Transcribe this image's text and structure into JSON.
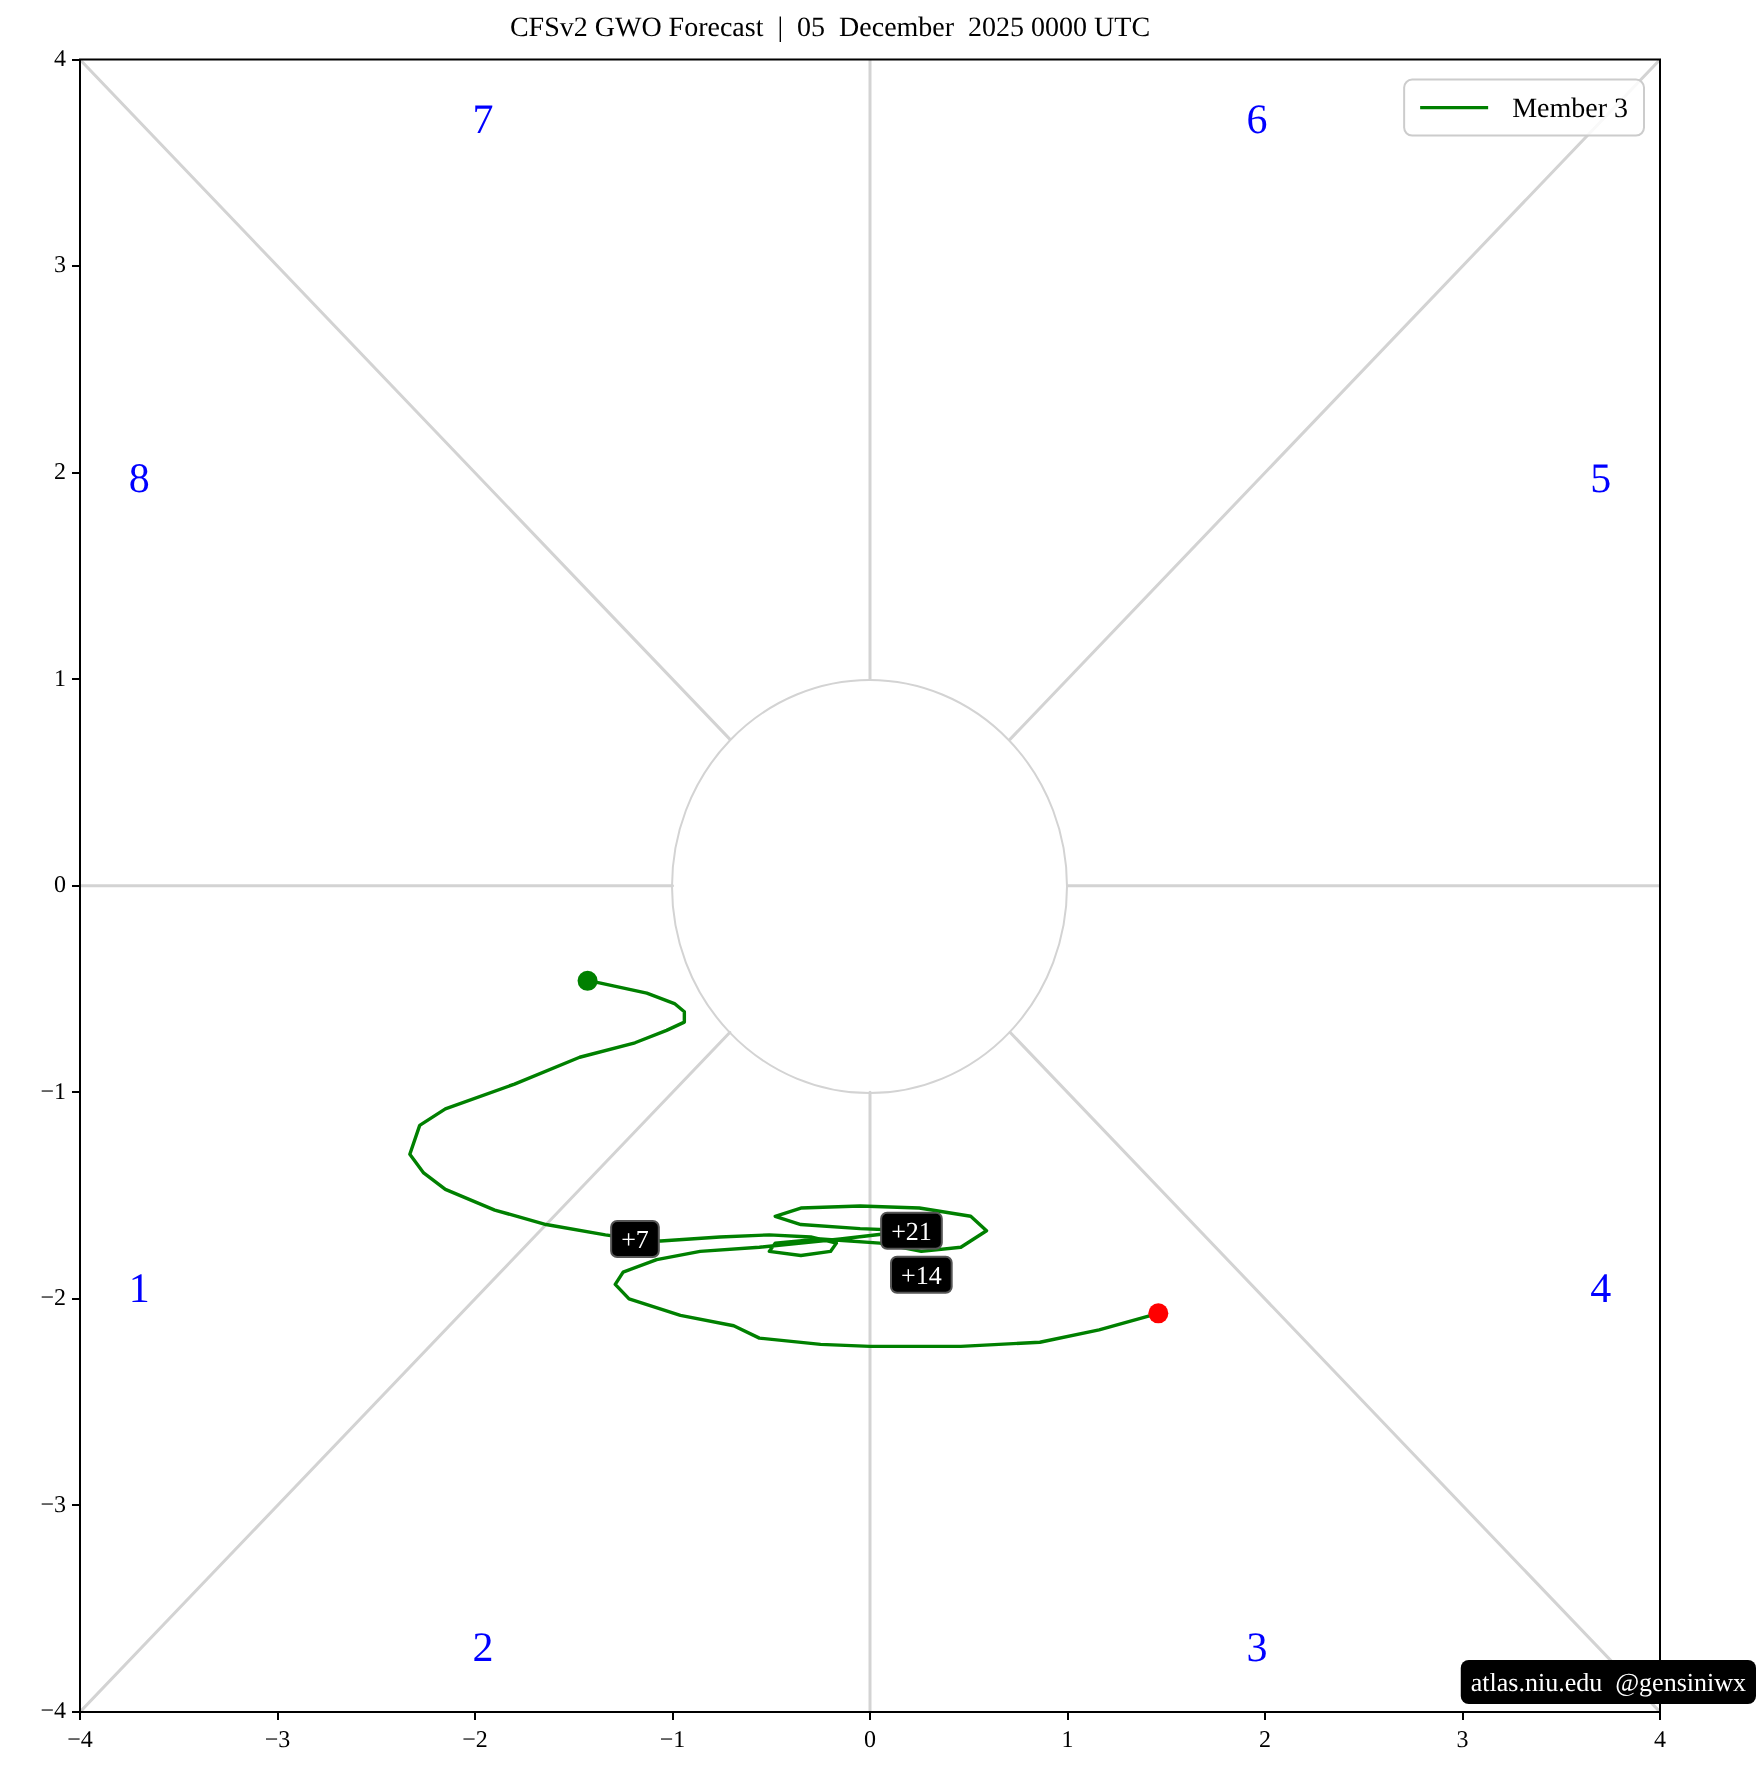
{
  "chart_data": {
    "type": "line",
    "title": "CFSv2 GWO Forecast  |  05  December  2025 0000 UTC",
    "xlim": [
      -4,
      4
    ],
    "ylim": [
      -4,
      4
    ],
    "xticks": [
      {
        "value": -4,
        "label": "−4"
      },
      {
        "value": -3,
        "label": "−3"
      },
      {
        "value": -2,
        "label": "−2"
      },
      {
        "value": -1,
        "label": "−1"
      },
      0,
      1,
      2,
      3,
      4
    ],
    "yticks": [
      {
        "value": -4,
        "label": "−4"
      },
      {
        "value": -3,
        "label": "−3"
      },
      {
        "value": -2,
        "label": "−2"
      },
      {
        "value": -1,
        "label": "−1"
      },
      0,
      1,
      2,
      3,
      4
    ],
    "legend": "top right",
    "series": [
      {
        "color": "#d3d3d3",
        "x": [
          -4,
          -1
        ],
        "values": [
          0,
          0
        ]
      },
      {
        "color": "#d3d3d3",
        "x": [
          1,
          4
        ],
        "values": [
          0,
          0
        ]
      },
      {
        "color": "#d3d3d3",
        "x": [
          0,
          0
        ],
        "values": [
          1,
          4
        ]
      },
      {
        "color": "#d3d3d3",
        "x": [
          0,
          0
        ],
        "values": [
          -1,
          -4
        ]
      },
      {
        "color": "#d3d3d3",
        "x": [
          -4,
          -0.71
        ],
        "values": [
          4,
          0.71
        ]
      },
      {
        "color": "#d3d3d3",
        "x": [
          0.71,
          4
        ],
        "values": [
          0.71,
          4
        ]
      },
      {
        "color": "#d3d3d3",
        "x": [
          -4,
          -0.71
        ],
        "values": [
          -4,
          -0.71
        ]
      },
      {
        "color": "#d3d3d3",
        "x": [
          0.71,
          4
        ],
        "values": [
          -0.71,
          -4
        ]
      },
      {
        "name": "Member 3",
        "color": "#008000",
        "x": [
          -1.43,
          -1.37,
          -1.13,
          -0.99,
          -0.94,
          -0.94,
          -1.03,
          -1.19,
          -1.47,
          -1.8,
          -2.15,
          -2.28,
          -2.33,
          -2.26,
          -2.15,
          -1.9,
          -1.64,
          -1.34,
          -1.19,
          -1.06,
          -0.76,
          -0.51,
          -0.3,
          -0.17,
          -0.2,
          -0.35,
          -0.51,
          -0.48,
          -0.25,
          0.05,
          0.26,
          0.46,
          0.59,
          0.51,
          0.25,
          -0.05,
          -0.35,
          -0.48,
          -0.35,
          -0.05,
          0.21,
          -0.15,
          -0.56,
          -0.86,
          -1.08,
          -1.25,
          -1.29,
          -1.22,
          -0.96,
          -0.69,
          -0.56,
          -0.25,
          0,
          0.46,
          0.86,
          1.16,
          1.46
        ],
        "values": [
          -0.46,
          -0.47,
          -0.52,
          -0.57,
          -0.61,
          -0.66,
          -0.7,
          -0.76,
          -0.83,
          -0.96,
          -1.08,
          -1.16,
          -1.3,
          -1.39,
          -1.47,
          -1.57,
          -1.64,
          -1.69,
          -1.71,
          -1.72,
          -1.7,
          -1.69,
          -1.7,
          -1.73,
          -1.77,
          -1.79,
          -1.77,
          -1.73,
          -1.71,
          -1.73,
          -1.77,
          -1.75,
          -1.67,
          -1.6,
          -1.56,
          -1.55,
          -1.56,
          -1.6,
          -1.64,
          -1.66,
          -1.67,
          -1.71,
          -1.75,
          -1.77,
          -1.81,
          -1.87,
          -1.93,
          -2,
          -2.08,
          -2.13,
          -2.19,
          -2.22,
          -2.23,
          -2.23,
          -2.21,
          -2.15,
          -2.07
        ]
      },
      {
        "type": "scatter",
        "marker": "circle",
        "color": "#008000",
        "x": [
          -1.43
        ],
        "values": [
          -0.46
        ]
      },
      {
        "type": "scatter",
        "marker": "circle",
        "color": "#ff0000",
        "x": [
          1.46
        ],
        "values": [
          -2.07
        ]
      }
    ],
    "annotations": [
      "1",
      "2",
      "3",
      "4",
      "5",
      "6",
      "7",
      "8",
      {
        "text": "+7",
        "x": -1.19,
        "y": -1.71
      },
      {
        "text": "+14",
        "x": 0.26,
        "y": -1.77
      },
      {
        "text": "+21",
        "x": 0.21,
        "y": -1.67
      },
      "atlas.niu.edu  @gensiniwx"
    ]
  }
}
